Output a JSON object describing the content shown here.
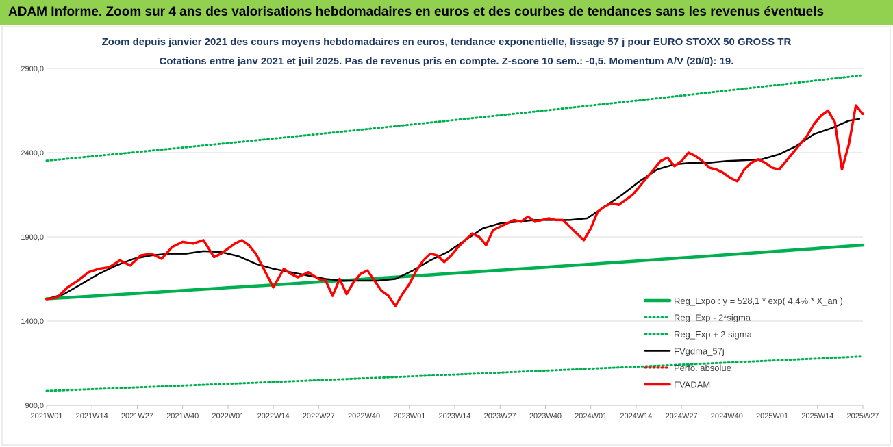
{
  "banner": {
    "title": "ADAM Informe. Zoom sur 4 ans des valorisations hebdomadaires en euros et des courbes de tendances sans les revenus éventuels"
  },
  "chart_data": {
    "type": "line",
    "title": "Zoom depuis janvier 2021 des cours moyens hebdomadaires en euros, tendance exponentielle, lissage 57 j pour EURO STOXX 50 GROSS TR",
    "subtitle": "Cotations entre janv 2021 et juil 2025. Pas de revenus pris en compte. Z-score 10 sem.: -0,5. Momentum A/V (20/0): 19.",
    "x_ticks": [
      "2021W01",
      "2021W14",
      "2021W27",
      "2021W40",
      "2022W01",
      "2022W14",
      "2022W27",
      "2022W40",
      "2023W01",
      "2023W14",
      "2023W27",
      "2023W40",
      "2024W01",
      "2024W14",
      "2024W27",
      "2024W40",
      "2025W01",
      "2025W14",
      "2025W27"
    ],
    "y_tick_labels": [
      "900,0",
      "1400,0",
      "1900,0",
      "2400,0",
      "2900,0"
    ],
    "ylim": [
      900,
      2900
    ],
    "grid": "horizontal",
    "legend_position": "bottom-right",
    "series": [
      {
        "name": "Reg_Expo : y = 528,1 * exp( 4,4% *  X_an )",
        "color": "#00b050",
        "style": "solid-thick",
        "x": [
          0,
          234
        ],
        "values": [
          1532,
          1851
        ],
        "shape": "exp"
      },
      {
        "name": "Reg_Exp - 2*sigma",
        "color": "#00b050",
        "style": "dotted",
        "x": [
          0,
          234
        ],
        "values": [
          985,
          1190
        ],
        "shape": "exp"
      },
      {
        "name": "Reg_Exp + 2 sigma",
        "color": "#00b050",
        "style": "dotted",
        "x": [
          0,
          234
        ],
        "values": [
          2352,
          2860
        ],
        "shape": "exp"
      },
      {
        "name": "FVgdma_57j",
        "color": "#000000",
        "style": "solid",
        "x": [
          0,
          5,
          10,
          15,
          20,
          25,
          30,
          35,
          40,
          45,
          50,
          55,
          60,
          65,
          70,
          75,
          80,
          85,
          90,
          95,
          100,
          105,
          110,
          115,
          120,
          125,
          130,
          135,
          140,
          145,
          150,
          155,
          160,
          165,
          170,
          175,
          180,
          185,
          190,
          195,
          200,
          205,
          210,
          215,
          220,
          225,
          230,
          233
        ],
        "values": [
          1530,
          1560,
          1620,
          1680,
          1730,
          1770,
          1790,
          1800,
          1800,
          1815,
          1810,
          1785,
          1740,
          1710,
          1690,
          1670,
          1650,
          1640,
          1640,
          1640,
          1650,
          1700,
          1760,
          1810,
          1880,
          1950,
          1980,
          1990,
          2000,
          2000,
          2000,
          2010,
          2080,
          2150,
          2230,
          2300,
          2330,
          2340,
          2340,
          2350,
          2355,
          2360,
          2390,
          2440,
          2510,
          2545,
          2590,
          2600
        ]
      },
      {
        "name": "Perfo. absolue",
        "color": "#ff0000",
        "style": "dotted",
        "x": [],
        "values": []
      },
      {
        "name": "FVADAM",
        "color": "#ff0000",
        "style": "solid-thick",
        "x": [
          0,
          3,
          6,
          9,
          12,
          15,
          18,
          21,
          24,
          27,
          30,
          33,
          36,
          39,
          42,
          45,
          48,
          50,
          52,
          54,
          56,
          58,
          60,
          62,
          65,
          68,
          70,
          72,
          75,
          78,
          80,
          82,
          84,
          86,
          88,
          90,
          92,
          94,
          96,
          98,
          100,
          102,
          104,
          106,
          108,
          110,
          112,
          114,
          116,
          118,
          120,
          122,
          124,
          126,
          128,
          130,
          132,
          134,
          136,
          138,
          140,
          142,
          144,
          146,
          148,
          150,
          152,
          154,
          156,
          158,
          160,
          162,
          164,
          166,
          168,
          170,
          172,
          174,
          176,
          178,
          180,
          182,
          184,
          186,
          188,
          190,
          192,
          194,
          196,
          198,
          200,
          202,
          204,
          206,
          208,
          210,
          212,
          214,
          216,
          218,
          220,
          222,
          224,
          226,
          228,
          230,
          232,
          234
        ],
        "values": [
          1530,
          1540,
          1600,
          1640,
          1690,
          1710,
          1720,
          1760,
          1730,
          1790,
          1800,
          1770,
          1840,
          1870,
          1860,
          1880,
          1780,
          1800,
          1830,
          1860,
          1880,
          1850,
          1800,
          1720,
          1600,
          1710,
          1680,
          1660,
          1690,
          1650,
          1640,
          1550,
          1650,
          1560,
          1630,
          1680,
          1700,
          1640,
          1580,
          1550,
          1490,
          1560,
          1620,
          1700,
          1760,
          1800,
          1790,
          1750,
          1790,
          1840,
          1880,
          1920,
          1900,
          1850,
          1940,
          1960,
          1980,
          2000,
          1990,
          2020,
          1990,
          2000,
          2010,
          2000,
          2000,
          1960,
          1920,
          1880,
          1950,
          2050,
          2080,
          2100,
          2090,
          2120,
          2150,
          2200,
          2250,
          2300,
          2350,
          2370,
          2320,
          2350,
          2400,
          2380,
          2350,
          2310,
          2300,
          2280,
          2250,
          2230,
          2300,
          2340,
          2360,
          2340,
          2310,
          2300,
          2350,
          2400,
          2450,
          2500,
          2570,
          2620,
          2650,
          2580,
          2300,
          2450,
          2680,
          2630
        ]
      }
    ]
  }
}
